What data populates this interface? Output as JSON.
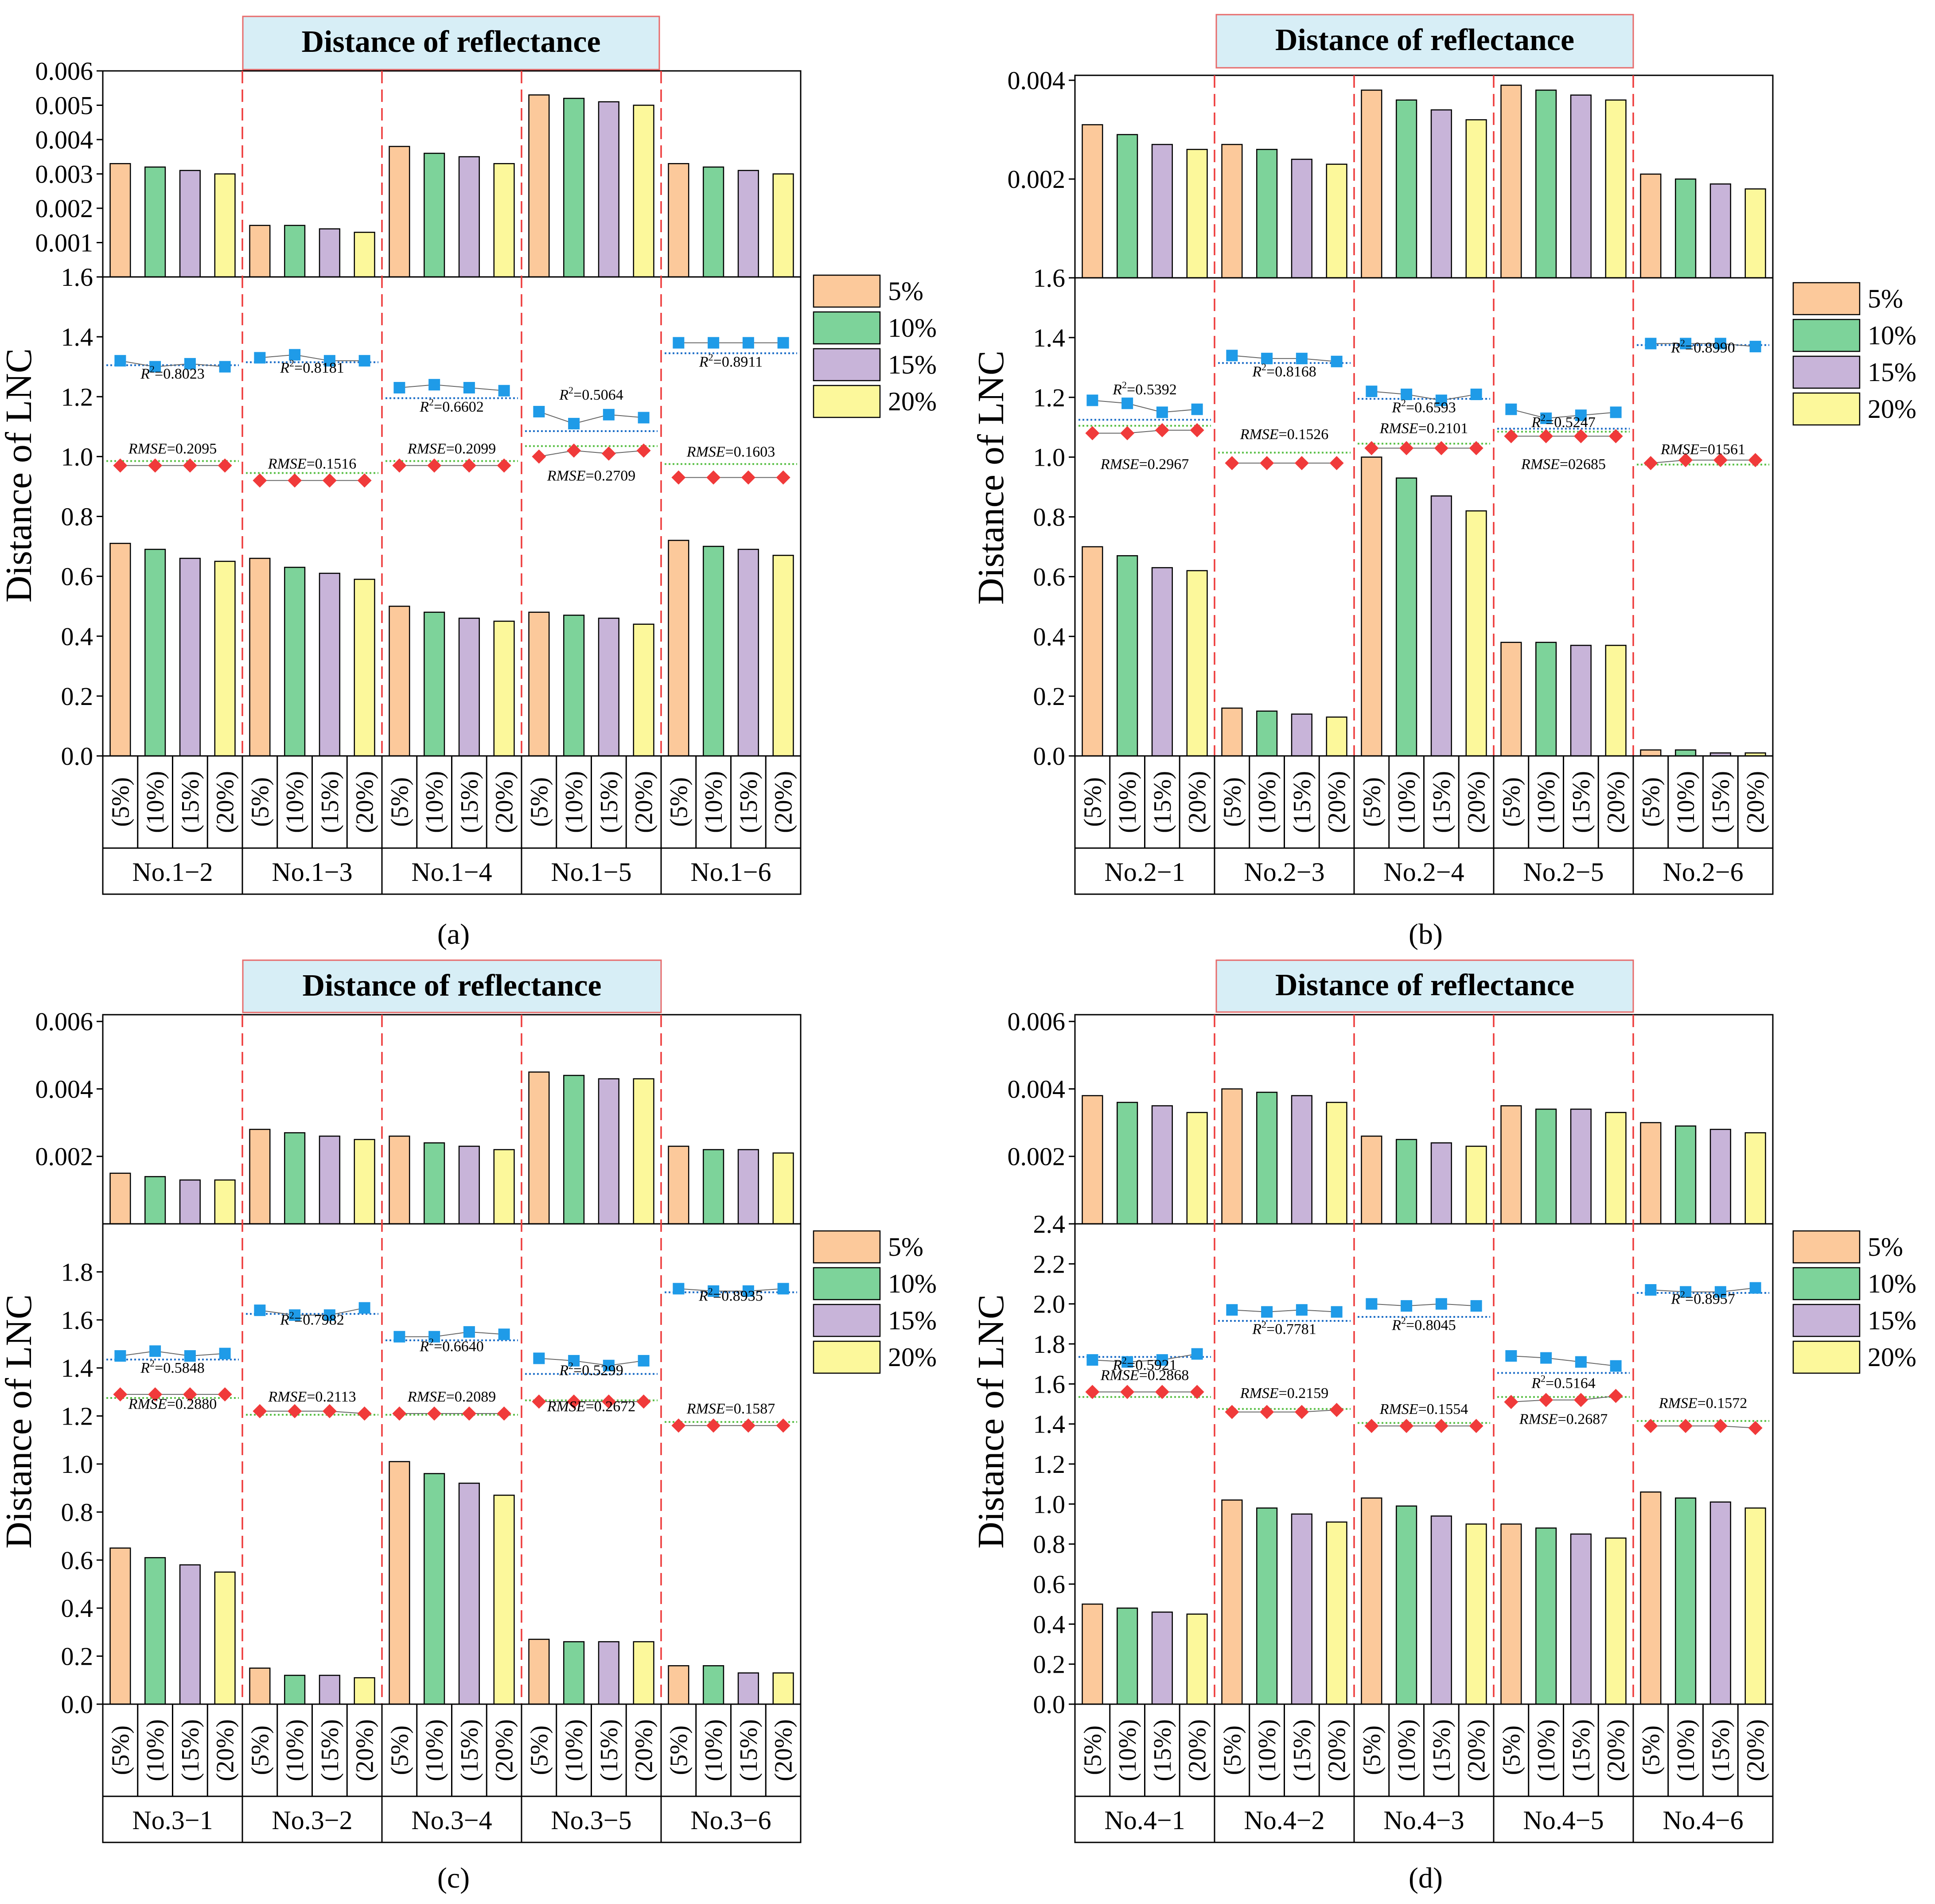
{
  "chart_data": [
    {
      "type": "bar",
      "panel_label": "(a)",
      "banner": "Distance of reflectance",
      "ylabel": "Distance of LNC",
      "groups": [
        "No.1−2",
        "No.1−3",
        "No.1−4",
        "No.1−5",
        "No.1−6"
      ],
      "categories": [
        "(5%)",
        "(10%)",
        "(15%)",
        "(20%)"
      ],
      "legend": [
        "5%",
        "10%",
        "15%",
        "20%"
      ],
      "top": {
        "ylim": [
          0,
          0.006
        ],
        "ticks": [
          "0.006",
          "0.005",
          "0.004",
          "0.003",
          "0.002",
          "0.001"
        ],
        "tick_values": [
          0.006,
          0.005,
          0.004,
          0.003,
          0.002,
          0.001
        ],
        "values": [
          [
            0.0033,
            0.0032,
            0.0031,
            0.003
          ],
          [
            0.0015,
            0.0015,
            0.0014,
            0.0013
          ],
          [
            0.0038,
            0.0036,
            0.0035,
            0.0033
          ],
          [
            0.0053,
            0.0052,
            0.0051,
            0.005
          ],
          [
            0.0033,
            0.0032,
            0.0031,
            0.003
          ]
        ]
      },
      "bottom": {
        "ylim": [
          0,
          1.6
        ],
        "ticks": [
          "1.6",
          "1.4",
          "1.2",
          "1.0",
          "0.8",
          "0.6",
          "0.4",
          "0.2",
          "0.0"
        ],
        "tick_values": [
          1.6,
          1.4,
          1.2,
          1.0,
          0.8,
          0.6,
          0.4,
          0.2,
          0.0
        ],
        "values": [
          [
            0.71,
            0.69,
            0.66,
            0.65
          ],
          [
            0.66,
            0.63,
            0.61,
            0.59
          ],
          [
            0.5,
            0.48,
            0.46,
            0.45
          ],
          [
            0.48,
            0.47,
            0.46,
            0.44
          ],
          [
            0.72,
            0.7,
            0.69,
            0.67
          ]
        ],
        "r2_series": [
          [
            1.32,
            1.3,
            1.31,
            1.3
          ],
          [
            1.33,
            1.34,
            1.32,
            1.32
          ],
          [
            1.23,
            1.24,
            1.23,
            1.22
          ],
          [
            1.15,
            1.11,
            1.14,
            1.13
          ],
          [
            1.38,
            1.38,
            1.38,
            1.38
          ]
        ],
        "r2_fit": [
          1.305,
          1.315,
          1.195,
          1.085,
          1.345
        ],
        "rmse_series": [
          [
            0.97,
            0.97,
            0.97,
            0.97
          ],
          [
            0.92,
            0.92,
            0.92,
            0.92
          ],
          [
            0.97,
            0.97,
            0.97,
            0.97
          ],
          [
            1.0,
            1.02,
            1.01,
            1.02
          ],
          [
            0.93,
            0.93,
            0.93,
            0.93
          ]
        ],
        "rmse_fit": [
          0.985,
          0.945,
          0.985,
          1.035,
          0.975
        ],
        "r2_labels": [
          "0.8023",
          "0.8181",
          "0.6602",
          "0.5064",
          "0.8911"
        ],
        "r2_label_y": [
          1.26,
          1.28,
          1.15,
          1.19,
          1.3
        ],
        "rmse_labels": [
          "0.2095",
          "0.1516",
          "0.2099",
          "0.2709",
          "0.1603"
        ],
        "rmse_label_y": [
          1.01,
          0.96,
          1.01,
          0.92,
          1.0
        ]
      }
    },
    {
      "type": "bar",
      "panel_label": "(b)",
      "banner": "Distance of reflectance",
      "ylabel": "Distance of LNC",
      "groups": [
        "No.2−1",
        "No.2−3",
        "No.2−4",
        "No.2−5",
        "No.2−6"
      ],
      "categories": [
        "(5%)",
        "(10%)",
        "(15%)",
        "(20%)"
      ],
      "legend": [
        "5%",
        "10%",
        "15%",
        "20%"
      ],
      "top": {
        "ylim": [
          0,
          0.0041
        ],
        "ticks": [
          "0.004",
          "0.002"
        ],
        "tick_values": [
          0.004,
          0.002
        ],
        "values": [
          [
            0.0031,
            0.0029,
            0.0027,
            0.0026
          ],
          [
            0.0027,
            0.0026,
            0.0024,
            0.0023
          ],
          [
            0.0038,
            0.0036,
            0.0034,
            0.0032
          ],
          [
            0.0039,
            0.0038,
            0.0037,
            0.0036
          ],
          [
            0.0021,
            0.002,
            0.0019,
            0.0018
          ]
        ]
      },
      "bottom": {
        "ylim": [
          0,
          1.6
        ],
        "ticks": [
          "1.6",
          "1.4",
          "1.2",
          "1.0",
          "0.8",
          "0.6",
          "0.4",
          "0.2",
          "0.0"
        ],
        "tick_values": [
          1.6,
          1.4,
          1.2,
          1.0,
          0.8,
          0.6,
          0.4,
          0.2,
          0.0
        ],
        "values": [
          [
            0.7,
            0.67,
            0.63,
            0.62
          ],
          [
            0.16,
            0.15,
            0.14,
            0.13
          ],
          [
            1.0,
            0.93,
            0.87,
            0.82
          ],
          [
            0.38,
            0.38,
            0.37,
            0.37
          ],
          [
            0.02,
            0.02,
            0.01,
            0.01
          ]
        ],
        "r2_series": [
          [
            1.19,
            1.18,
            1.15,
            1.16
          ],
          [
            1.34,
            1.33,
            1.33,
            1.32
          ],
          [
            1.22,
            1.21,
            1.19,
            1.21
          ],
          [
            1.16,
            1.13,
            1.14,
            1.15
          ],
          [
            1.38,
            1.38,
            1.38,
            1.37
          ]
        ],
        "r2_fit": [
          1.125,
          1.315,
          1.195,
          1.095,
          1.375
        ],
        "rmse_series": [
          [
            1.08,
            1.08,
            1.09,
            1.09
          ],
          [
            0.98,
            0.98,
            0.98,
            0.98
          ],
          [
            1.03,
            1.03,
            1.03,
            1.03
          ],
          [
            1.07,
            1.07,
            1.07,
            1.07
          ],
          [
            0.98,
            0.99,
            0.99,
            0.99
          ]
        ],
        "rmse_fit": [
          1.105,
          1.015,
          1.045,
          1.085,
          0.975
        ],
        "r2_labels": [
          "0.5392",
          "0.8168",
          "0.6593",
          "0.5247",
          "0.8990"
        ],
        "r2_label_y": [
          1.21,
          1.27,
          1.15,
          1.1,
          1.35
        ],
        "rmse_labels": [
          "0.2967",
          "0.1526",
          "0.2101",
          "02685",
          "01561"
        ],
        "rmse_label_y": [
          0.96,
          1.06,
          1.08,
          0.96,
          1.01
        ]
      }
    },
    {
      "type": "bar",
      "panel_label": "(c)",
      "banner": "Distance of reflectance",
      "ylabel": "Distance of LNC",
      "groups": [
        "No.3−1",
        "No.3−2",
        "No.3−4",
        "No.3−5",
        "No.3−6"
      ],
      "categories": [
        "(5%)",
        "(10%)",
        "(15%)",
        "(20%)"
      ],
      "legend": [
        "5%",
        "10%",
        "15%",
        "20%"
      ],
      "top": {
        "ylim": [
          0,
          0.0062
        ],
        "ticks": [
          "0.006",
          "0.004",
          "0.002"
        ],
        "tick_values": [
          0.006,
          0.004,
          0.002
        ],
        "values": [
          [
            0.0015,
            0.0014,
            0.0013,
            0.0013
          ],
          [
            0.0028,
            0.0027,
            0.0026,
            0.0025
          ],
          [
            0.0026,
            0.0024,
            0.0023,
            0.0022
          ],
          [
            0.0045,
            0.0044,
            0.0043,
            0.0043
          ],
          [
            0.0023,
            0.0022,
            0.0022,
            0.0021
          ]
        ]
      },
      "bottom": {
        "ylim": [
          0,
          2.0
        ],
        "ticks": [
          "1.8",
          "1.6",
          "1.4",
          "1.2",
          "1.0",
          "0.8",
          "0.6",
          "0.4",
          "0.2",
          "0.0"
        ],
        "tick_values": [
          1.8,
          1.6,
          1.4,
          1.2,
          1.0,
          0.8,
          0.6,
          0.4,
          0.2,
          0.0
        ],
        "values": [
          [
            0.65,
            0.61,
            0.58,
            0.55
          ],
          [
            0.15,
            0.12,
            0.12,
            0.11
          ],
          [
            1.01,
            0.96,
            0.92,
            0.87
          ],
          [
            0.27,
            0.26,
            0.26,
            0.26
          ],
          [
            0.16,
            0.16,
            0.13,
            0.13
          ]
        ],
        "r2_series": [
          [
            1.45,
            1.47,
            1.45,
            1.46
          ],
          [
            1.64,
            1.62,
            1.62,
            1.65
          ],
          [
            1.53,
            1.53,
            1.55,
            1.54
          ],
          [
            1.44,
            1.43,
            1.41,
            1.43
          ],
          [
            1.73,
            1.72,
            1.72,
            1.73
          ]
        ],
        "r2_fit": [
          1.435,
          1.625,
          1.515,
          1.375,
          1.715
        ],
        "rmse_series": [
          [
            1.29,
            1.29,
            1.29,
            1.29
          ],
          [
            1.22,
            1.22,
            1.22,
            1.21
          ],
          [
            1.21,
            1.21,
            1.21,
            1.21
          ],
          [
            1.26,
            1.26,
            1.26,
            1.26
          ],
          [
            1.16,
            1.16,
            1.16,
            1.16
          ]
        ],
        "rmse_fit": [
          1.275,
          1.205,
          1.205,
          1.265,
          1.175
        ],
        "r2_labels": [
          "0.5848",
          "0.7982",
          "0.6640",
          "0.5299",
          "0.8935"
        ],
        "r2_label_y": [
          1.38,
          1.58,
          1.47,
          1.37,
          1.68
        ],
        "rmse_labels": [
          "0.2880",
          "0.2113",
          "0.2089",
          "0.2672",
          "0.1587"
        ],
        "rmse_label_y": [
          1.23,
          1.26,
          1.26,
          1.22,
          1.21
        ]
      }
    },
    {
      "type": "bar",
      "panel_label": "(d)",
      "banner": "Distance of reflectance",
      "ylabel": "Distance of LNC",
      "groups": [
        "No.4−1",
        "No.4−2",
        "No.4−3",
        "No.4−5",
        "No.4−6"
      ],
      "categories": [
        "(5%)",
        "(10%)",
        "(15%)",
        "(20%)"
      ],
      "legend": [
        "5%",
        "10%",
        "15%",
        "20%"
      ],
      "top": {
        "ylim": [
          0,
          0.0062
        ],
        "ticks": [
          "0.006",
          "0.004",
          "0.002"
        ],
        "tick_values": [
          0.006,
          0.004,
          0.002
        ],
        "values": [
          [
            0.0038,
            0.0036,
            0.0035,
            0.0033
          ],
          [
            0.004,
            0.0039,
            0.0038,
            0.0036
          ],
          [
            0.0026,
            0.0025,
            0.0024,
            0.0023
          ],
          [
            0.0035,
            0.0034,
            0.0034,
            0.0033
          ],
          [
            0.003,
            0.0029,
            0.0028,
            0.0027
          ]
        ]
      },
      "bottom": {
        "ylim": [
          0,
          2.4
        ],
        "ticks": [
          "2.4",
          "2.2",
          "2.0",
          "1.8",
          "1.6",
          "1.4",
          "1.2",
          "1.0",
          "0.8",
          "0.6",
          "0.4",
          "0.2",
          "0.0"
        ],
        "tick_values": [
          2.4,
          2.2,
          2.0,
          1.8,
          1.6,
          1.4,
          1.2,
          1.0,
          0.8,
          0.6,
          0.4,
          0.2,
          0.0
        ],
        "values": [
          [
            0.5,
            0.48,
            0.46,
            0.45
          ],
          [
            1.02,
            0.98,
            0.95,
            0.91
          ],
          [
            1.03,
            0.99,
            0.94,
            0.9
          ],
          [
            0.9,
            0.88,
            0.85,
            0.83
          ],
          [
            1.06,
            1.03,
            1.01,
            0.98
          ]
        ],
        "r2_series": [
          [
            1.72,
            1.71,
            1.72,
            1.75
          ],
          [
            1.97,
            1.96,
            1.97,
            1.96
          ],
          [
            2.0,
            1.99,
            2.0,
            1.99
          ],
          [
            1.74,
            1.73,
            1.71,
            1.69
          ],
          [
            2.07,
            2.06,
            2.06,
            2.08
          ]
        ],
        "r2_fit": [
          1.735,
          1.915,
          1.935,
          1.655,
          2.055
        ],
        "rmse_series": [
          [
            1.56,
            1.56,
            1.56,
            1.56
          ],
          [
            1.46,
            1.46,
            1.46,
            1.47
          ],
          [
            1.39,
            1.39,
            1.39,
            1.39
          ],
          [
            1.51,
            1.52,
            1.52,
            1.54
          ],
          [
            1.39,
            1.39,
            1.39,
            1.38
          ]
        ],
        "rmse_fit": [
          1.535,
          1.475,
          1.405,
          1.535,
          1.415
        ],
        "r2_labels": [
          "0.5921",
          "0.7781",
          "0.8045",
          "0.5164",
          "0.8957"
        ],
        "r2_label_y": [
          1.67,
          1.85,
          1.87,
          1.58,
          2.0
        ],
        "rmse_labels": [
          "0.2868",
          "0.2159",
          "0.1554",
          "0.2687",
          "0.1572"
        ],
        "rmse_label_y": [
          1.62,
          1.53,
          1.45,
          1.4,
          1.48
        ]
      }
    }
  ],
  "colors": {
    "bar_5": "#FCC99B",
    "bar_10": "#7DD39A",
    "bar_15": "#C8B4D9",
    "bar_20": "#FCF89B",
    "r2_marker": "#1F9BE8",
    "r2_fit_line": "#1F6FC8",
    "rmse_marker": "#F03A3A",
    "rmse_fit_line": "#5BC048",
    "divider": "#EE3B3B",
    "banner_fill": "#D7EEF6",
    "banner_border": "#E76B6B"
  },
  "annotation_prefix": {
    "r2": "R",
    "r2_sup": "2",
    "rmse": "RMSE"
  }
}
